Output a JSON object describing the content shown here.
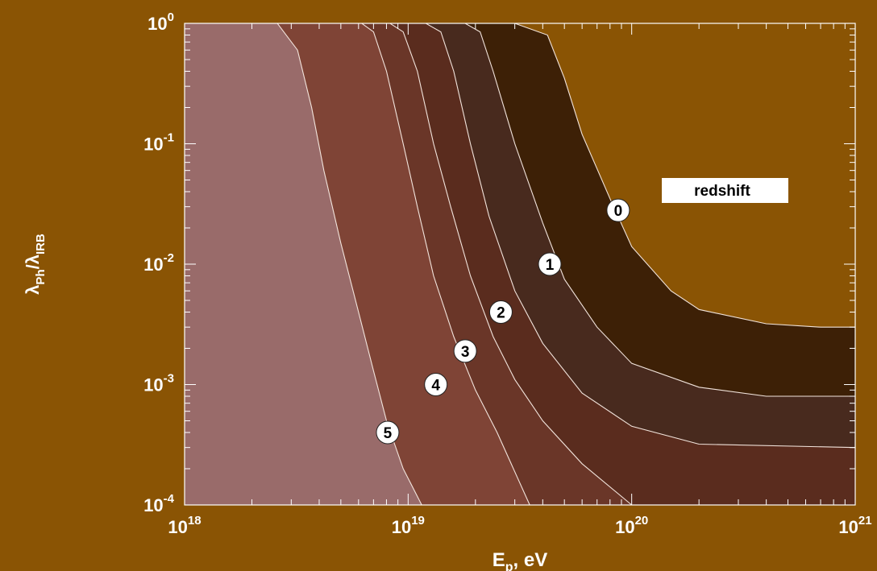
{
  "chart_data": {
    "type": "area",
    "xlabel": "E_p, eV",
    "ylabel": "λ_Ph/λ_IRB",
    "x_scale": "log",
    "y_scale": "log",
    "xlim": [
      1e+18,
      1e+21
    ],
    "ylim": [
      0.0001,
      1
    ],
    "x_ticks": [
      {
        "base": "10",
        "exp": "18",
        "value": 1e+18
      },
      {
        "base": "10",
        "exp": "19",
        "value": 1e+19
      },
      {
        "base": "10",
        "exp": "20",
        "value": 1e+20
      },
      {
        "base": "10",
        "exp": "21",
        "value": 1e+21
      }
    ],
    "y_ticks": [
      {
        "base": "10",
        "exp": "0",
        "value": 1
      },
      {
        "base": "10",
        "exp": "-1",
        "value": 0.1
      },
      {
        "base": "10",
        "exp": "-2",
        "value": 0.01
      },
      {
        "base": "10",
        "exp": "-3",
        "value": 0.001
      },
      {
        "base": "10",
        "exp": "-4",
        "value": 0.0001
      }
    ],
    "legend_label": "redshift",
    "legend_placement": "top-right",
    "grid": false,
    "series": [
      {
        "label": "0",
        "color": "#3d2006",
        "points": [
          [
            1e+18,
            1
          ],
          [
            3e+19,
            1
          ],
          [
            4.2e+19,
            0.8
          ],
          [
            5e+19,
            0.35
          ],
          [
            6e+19,
            0.12
          ],
          [
            8e+19,
            0.035
          ],
          [
            1e+20,
            0.014
          ],
          [
            1.5e+20,
            0.006
          ],
          [
            2e+20,
            0.0042
          ],
          [
            4e+20,
            0.0032
          ],
          [
            7e+20,
            0.003
          ],
          [
            1e+21,
            0.003
          ]
        ],
        "label_at": [
          8.7e+19,
          0.028
        ]
      },
      {
        "label": "1",
        "color": "#482a1e",
        "points": [
          [
            1e+18,
            1
          ],
          [
            1.8e+19,
            1
          ],
          [
            2.1e+19,
            0.85
          ],
          [
            2.4e+19,
            0.4
          ],
          [
            3e+19,
            0.1
          ],
          [
            4e+19,
            0.022
          ],
          [
            5e+19,
            0.0075
          ],
          [
            7e+19,
            0.003
          ],
          [
            1e+20,
            0.0015
          ],
          [
            2e+20,
            0.00095
          ],
          [
            4e+20,
            0.0008
          ],
          [
            1e+21,
            0.0008
          ]
        ],
        "label_at": [
          4.3e+19,
          0.01
        ]
      },
      {
        "label": "2",
        "color": "#5a2c1e",
        "points": [
          [
            1e+18,
            1
          ],
          [
            1.2e+19,
            1
          ],
          [
            1.4e+19,
            0.85
          ],
          [
            1.6e+19,
            0.4
          ],
          [
            1.9e+19,
            0.1
          ],
          [
            2.3e+19,
            0.025
          ],
          [
            3e+19,
            0.006
          ],
          [
            4e+19,
            0.0022
          ],
          [
            6e+19,
            0.00085
          ],
          [
            1e+20,
            0.00045
          ],
          [
            2e+20,
            0.00032
          ],
          [
            1e+21,
            0.0003
          ]
        ],
        "label_at": [
          2.6e+19,
          0.004
        ]
      },
      {
        "label": "3",
        "color": "#6a3628",
        "points": [
          [
            1e+18,
            1
          ],
          [
            8.3e+18,
            1
          ],
          [
            9.5e+18,
            0.85
          ],
          [
            1.1e+19,
            0.4
          ],
          [
            1.3e+19,
            0.1
          ],
          [
            1.55e+19,
            0.03
          ],
          [
            1.9e+19,
            0.008
          ],
          [
            2.4e+19,
            0.0025
          ],
          [
            3e+19,
            0.0011
          ],
          [
            4e+19,
            0.0005
          ],
          [
            6e+19,
            0.00022
          ],
          [
            1e+20,
            0.0001
          ]
        ],
        "label_at": [
          1.8e+19,
          0.0019
        ]
      },
      {
        "label": "4",
        "color": "#7f4436",
        "points": [
          [
            1e+18,
            1
          ],
          [
            6.2e+18,
            1
          ],
          [
            7e+18,
            0.85
          ],
          [
            8e+18,
            0.4
          ],
          [
            9.5e+18,
            0.1
          ],
          [
            1.1e+19,
            0.03
          ],
          [
            1.3e+19,
            0.008
          ],
          [
            1.6e+19,
            0.0025
          ],
          [
            2e+19,
            0.0009
          ],
          [
            2.5e+19,
            0.0004
          ],
          [
            3.5e+19,
            0.0001
          ]
        ],
        "label_at": [
          1.33e+19,
          0.001
        ]
      },
      {
        "label": "5",
        "color": "#996b6a",
        "points": [
          [
            1e+18,
            1
          ],
          [
            2.6e+18,
            1
          ],
          [
            3.2e+18,
            0.6
          ],
          [
            3.7e+18,
            0.2
          ],
          [
            4.2e+18,
            0.06
          ],
          [
            5e+18,
            0.015
          ],
          [
            6e+18,
            0.004
          ],
          [
            7e+18,
            0.0013
          ],
          [
            8e+18,
            0.0005
          ],
          [
            9.5e+18,
            0.0002
          ],
          [
            1.15e+19,
            0.0001
          ]
        ],
        "label_at": [
          8.1e+18,
          0.0004
        ]
      }
    ]
  }
}
